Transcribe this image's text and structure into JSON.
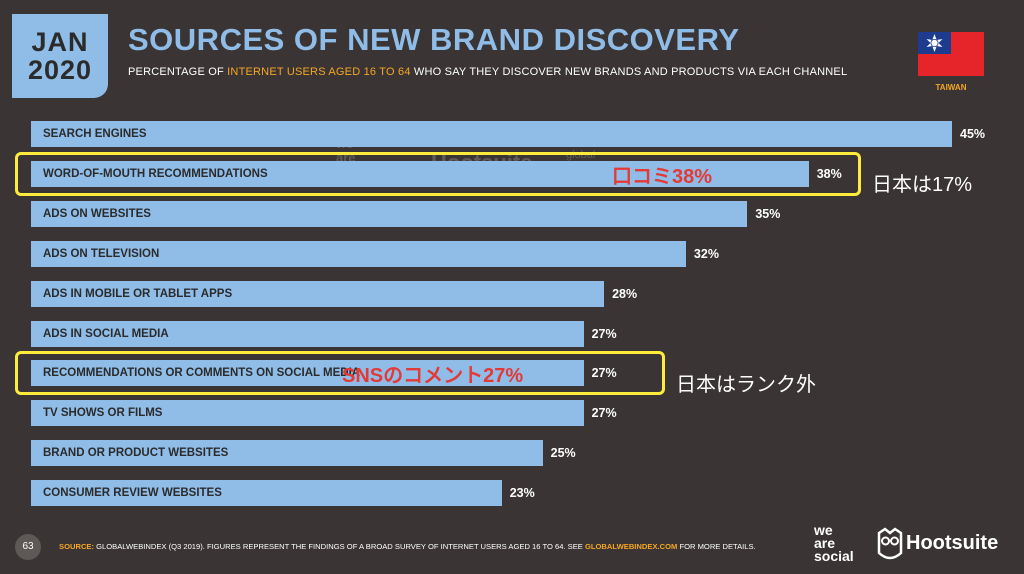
{
  "header": {
    "badge_month": "JAN",
    "badge_year": "2020",
    "title": "SOURCES OF NEW BRAND DISCOVERY",
    "subtitle_pre": "PERCENTAGE OF ",
    "subtitle_highlight": "INTERNET USERS AGED 16 TO 64",
    "subtitle_post": " WHO SAY THEY DISCOVER NEW BRANDS AND PRODUCTS VIA EACH CHANNEL",
    "country": "TAIWAN"
  },
  "chart_data": {
    "type": "bar",
    "orientation": "horizontal",
    "title": "SOURCES OF NEW BRAND DISCOVERY",
    "xlim": [
      0,
      45
    ],
    "categories": [
      "SEARCH ENGINES",
      "WORD-OF-MOUTH RECOMMENDATIONS",
      "ADS ON WEBSITES",
      "ADS ON TELEVISION",
      "ADS IN MOBILE OR TABLET APPS",
      "ADS IN SOCIAL MEDIA",
      "RECOMMENDATIONS OR COMMENTS ON SOCIAL MEDIA",
      "TV SHOWS OR FILMS",
      "BRAND OR PRODUCT WEBSITES",
      "CONSUMER REVIEW WEBSITES"
    ],
    "values": [
      45,
      38,
      35,
      32,
      28,
      27,
      27,
      27,
      25,
      23
    ],
    "value_labels": [
      "45%",
      "38%",
      "35%",
      "32%",
      "28%",
      "27%",
      "27%",
      "27%",
      "25%",
      "23%"
    ],
    "bar_color": "#8fbde8"
  },
  "annotations": [
    {
      "bar_index": 1,
      "overlay_text": "口コミ38%",
      "side_text": "日本は17%"
    },
    {
      "bar_index": 6,
      "overlay_text": "SNSのコメント27%",
      "side_text": "日本はランク外"
    }
  ],
  "watermark": {
    "left": "we are social",
    "center": "Hootsuite",
    "right": "global web index"
  },
  "footer": {
    "page_number": "63",
    "source_label": "SOURCE:",
    "source_text_1": " GLOBALWEBINDEX (Q3 2019). FIGURES REPRESENT THE FINDINGS OF A BROAD SURVEY OF INTERNET USERS AGED 16 TO 64. SEE ",
    "source_link": "GLOBALWEBINDEX.COM",
    "source_text_2": " FOR MORE DETAILS.",
    "logo_was_1": "we",
    "logo_was_2": "are",
    "logo_was_3": "social",
    "logo_hootsuite": "Hootsuite"
  },
  "colors": {
    "background": "#3a3534",
    "accent_blue": "#8fbde8",
    "highlight_orange": "#f5a623",
    "annotation_red": "#e53935",
    "box_yellow": "#ffeb3b"
  }
}
